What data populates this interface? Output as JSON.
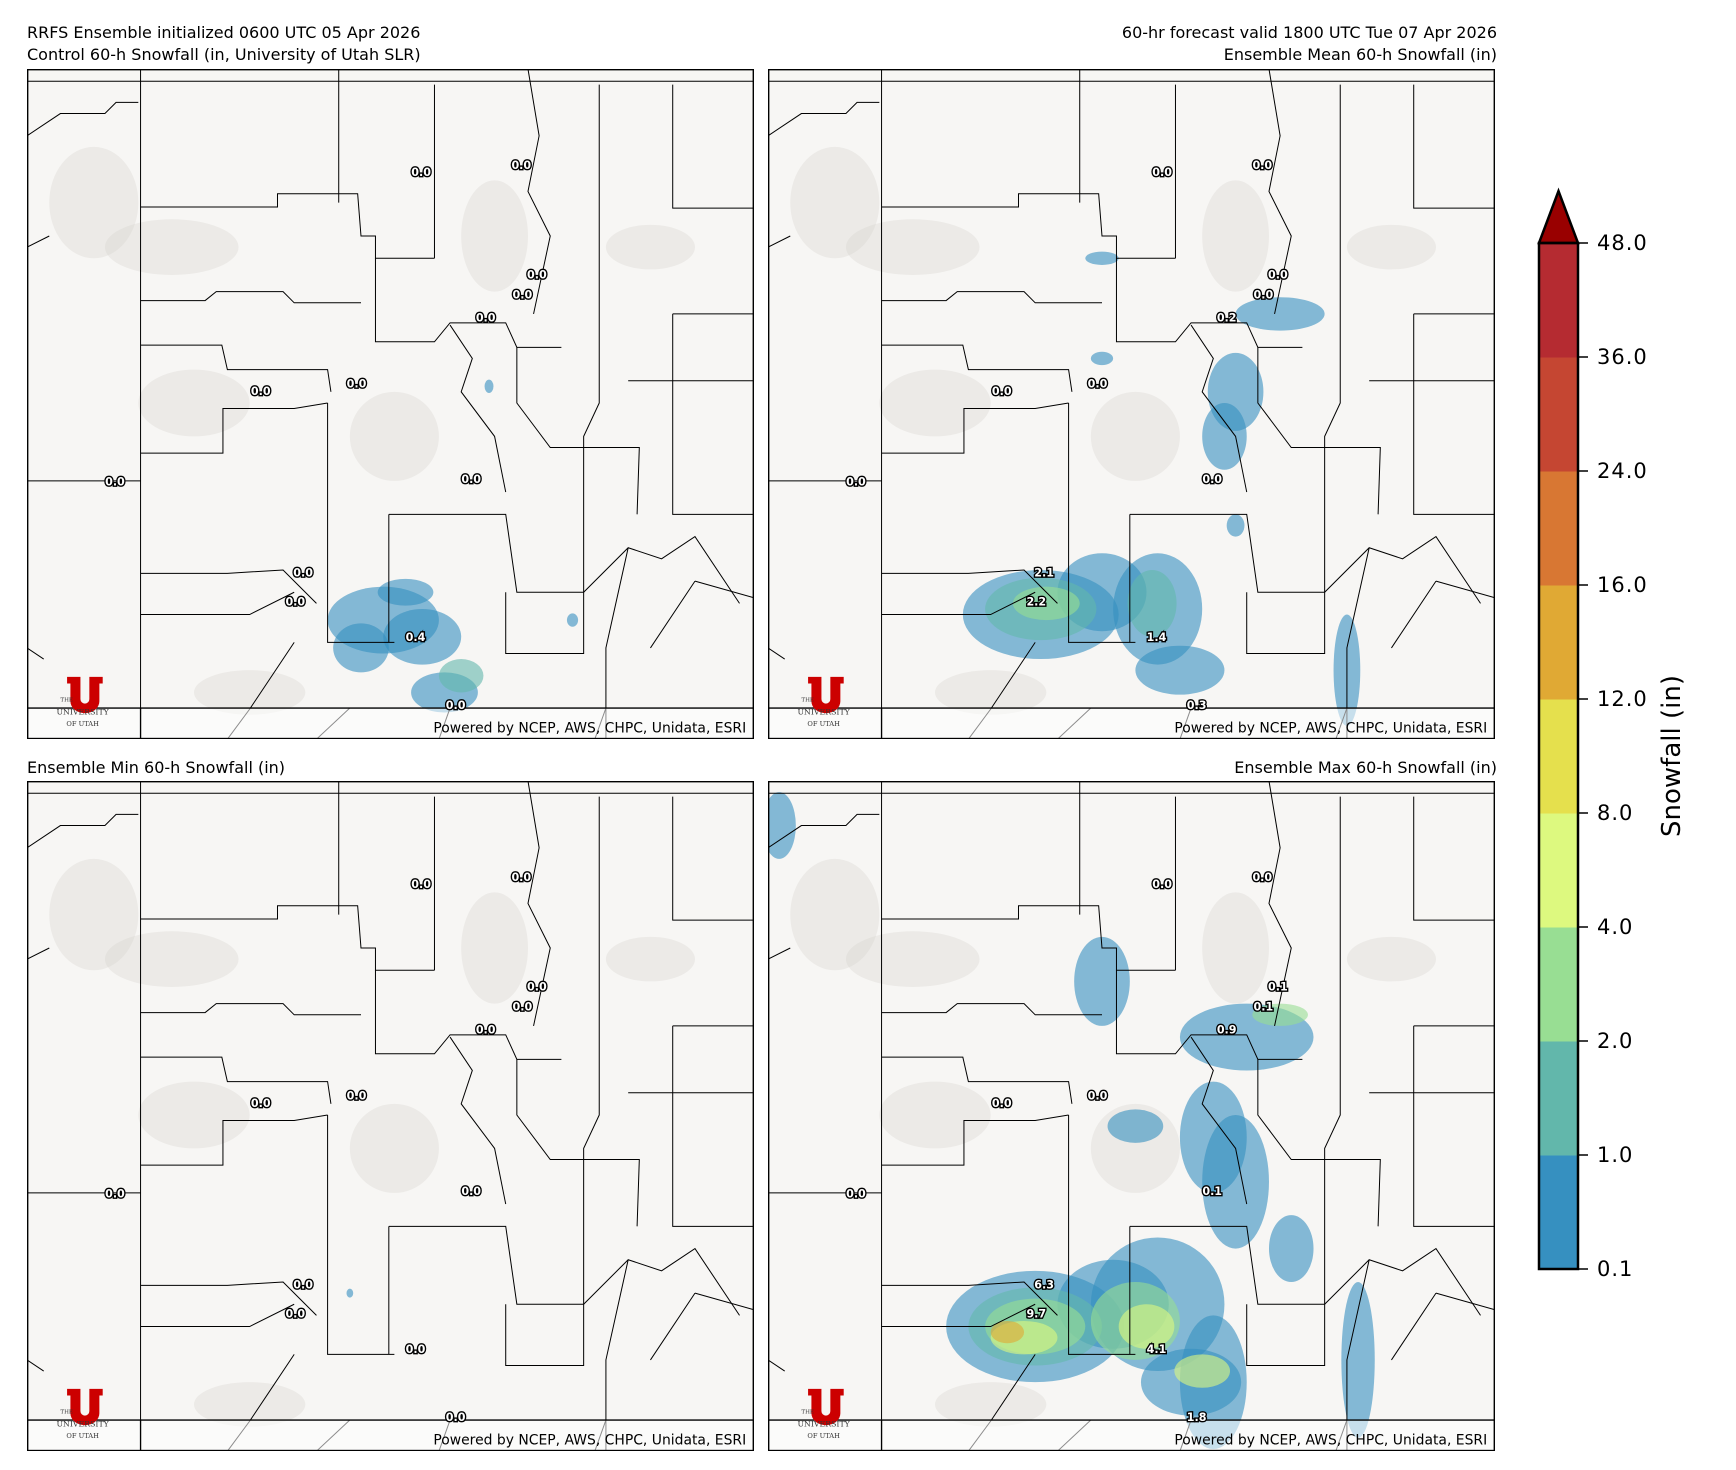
{
  "header": {
    "left_line1": "RRFS Ensemble initialized 0600 UTC 05 Apr 2026",
    "left_line2": "Control 60-h Snowfall (in, University of Utah SLR)",
    "right_line1": "60-hr forecast valid 1800 UTC Tue 07 Apr 2026",
    "right_line2": "Ensemble Mean 60-h Snowfall (in)"
  },
  "panels": [
    {
      "title": "Control 60-h Snowfall (in, University of Utah SLR)",
      "credit": "Powered by NCEP, AWS, CHPC, Unidata, ESRI",
      "point_values": [
        "0.0",
        "0.0",
        "0.0",
        "0.0",
        "0.0",
        "0.0",
        "0.0",
        "0.0",
        "0.0",
        "0.0",
        "0.0",
        "0.4",
        "0.0"
      ],
      "intensity": "low"
    },
    {
      "title": "Ensemble Mean 60-h Snowfall (in)",
      "credit": "Powered by NCEP, AWS, CHPC, Unidata, ESRI",
      "point_values": [
        "0.0",
        "0.0",
        "0.0",
        "0.0",
        "0.2",
        "0.0",
        "0.0",
        "0.0",
        "0.0",
        "2.1",
        "2.2",
        "1.4",
        "0.3"
      ],
      "intensity": "mean"
    },
    {
      "title": "Ensemble Min 60-h Snowfall (in)",
      "credit": "Powered by NCEP, AWS, CHPC, Unidata, ESRI",
      "point_values": [
        "0.0",
        "0.0",
        "0.0",
        "0.0",
        "0.0",
        "0.0",
        "0.0",
        "0.0",
        "0.0",
        "0.0",
        "0.0",
        "0.0",
        "0.0"
      ],
      "intensity": "none"
    },
    {
      "title": "Ensemble Max 60-h Snowfall (in)",
      "credit": "Powered by NCEP, AWS, CHPC, Unidata, ESRI",
      "point_values": [
        "0.0",
        "0.0",
        "0.1",
        "0.1",
        "0.9",
        "0.0",
        "0.0",
        "0.0",
        "0.1",
        "6.3",
        "9.7",
        "4.1",
        "1.8"
      ],
      "intensity": "max"
    }
  ],
  "logo": {
    "the": "THE",
    "name": "UNIVERSITY",
    "of_utah": "OF UTAH",
    "color": "#cc0000"
  },
  "colorbar": {
    "label": "Snowfall (in)",
    "ticks": [
      "0.1",
      "1.0",
      "2.0",
      "4.0",
      "8.0",
      "12.0",
      "16.0",
      "24.0",
      "36.0",
      "48.0"
    ],
    "colors": [
      "#3690c0",
      "#62b7ab",
      "#98de93",
      "#ddf97f",
      "#e5e04d",
      "#e0a934",
      "#d87733",
      "#c54632",
      "#b52b31"
    ],
    "extend_color": "#990000"
  }
}
